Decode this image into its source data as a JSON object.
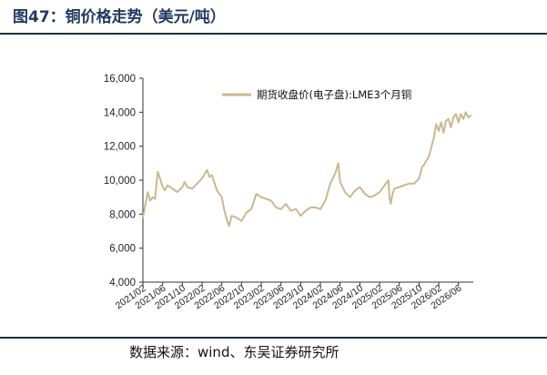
{
  "figure": {
    "title": "图47：铜价格走势（美元/吨）",
    "source": "数据来源：wind、东吴证券研究所"
  },
  "colors": {
    "line": "#c9b98f",
    "title": "#1f3a5f",
    "axis": "#333333",
    "rule": "#1f2f45"
  },
  "chart_data": {
    "type": "line",
    "title": "",
    "xlabel": "",
    "ylabel": "",
    "ylim": [
      4000,
      16000
    ],
    "yticks": [
      4000,
      6000,
      8000,
      10000,
      12000,
      14000,
      16000
    ],
    "ytick_labels": [
      "4,000",
      "6,000",
      "8,000",
      "10,000",
      "12,000",
      "14,000",
      "16,000"
    ],
    "xlim": [
      "2021-02",
      "2026-09"
    ],
    "xtick_labels": [
      "2021/02",
      "2021/06",
      "2021/10",
      "2022/02",
      "2022/06",
      "2022/10",
      "2023/02",
      "2023/06",
      "2023/10",
      "2024/02",
      "2024/06",
      "2024/10",
      "2025/02",
      "2025/06",
      "2025/10",
      "2026/02",
      "2026/06"
    ],
    "grid": false,
    "legend": "top-right",
    "series": [
      {
        "name": "期货收盘价(电子盘):LME3个月铜",
        "color": "#c9b98f",
        "x": [
          "2021-02",
          "2021-02-15",
          "2021-03",
          "2021-03-15",
          "2021-04",
          "2021-04-15",
          "2021-05",
          "2021-05-15",
          "2021-06",
          "2021-06-15",
          "2021-07",
          "2021-08",
          "2021-09",
          "2021-10",
          "2021-10-15",
          "2021-11",
          "2021-12",
          "2022-01",
          "2022-02",
          "2022-03",
          "2022-03-15",
          "2022-04",
          "2022-05",
          "2022-06",
          "2022-06-15",
          "2022-07",
          "2022-07-15",
          "2022-08",
          "2022-09",
          "2022-10",
          "2022-11",
          "2022-12",
          "2023-01",
          "2023-02",
          "2023-03",
          "2023-04",
          "2023-05",
          "2023-06",
          "2023-07",
          "2023-08",
          "2023-09",
          "2023-10",
          "2023-11",
          "2023-12",
          "2024-01",
          "2024-02",
          "2024-03",
          "2024-04",
          "2024-05",
          "2024-05-20",
          "2024-06",
          "2024-07",
          "2024-08",
          "2024-09",
          "2024-10",
          "2024-11",
          "2024-12",
          "2025-01",
          "2025-02",
          "2025-03",
          "2025-03-25",
          "2025-04",
          "2025-04-09",
          "2025-04-20",
          "2025-05",
          "2025-06",
          "2025-07",
          "2025-08",
          "2025-09",
          "2025-10",
          "2025-10-20",
          "2025-11",
          "2025-12",
          "2026-01",
          "2026-01-15",
          "2026-02",
          "2026-02-15",
          "2026-03",
          "2026-03-15",
          "2026-04",
          "2026-04-15",
          "2026-05",
          "2026-05-15",
          "2026-06",
          "2026-06-15",
          "2026-07",
          "2026-07-15",
          "2026-08",
          "2026-08-15"
        ],
        "y": [
          7800,
          8500,
          9300,
          8800,
          9000,
          8900,
          10500,
          10100,
          9600,
          9400,
          9700,
          9500,
          9300,
          9600,
          9900,
          9600,
          9500,
          9800,
          10100,
          10600,
          10200,
          10300,
          9400,
          9000,
          8300,
          7700,
          7300,
          7900,
          7800,
          7600,
          8100,
          8300,
          9200,
          9000,
          8900,
          8800,
          8400,
          8300,
          8600,
          8200,
          8300,
          7900,
          8200,
          8400,
          8400,
          8300,
          8800,
          9800,
          10400,
          11000,
          9900,
          9300,
          9000,
          9400,
          9600,
          9200,
          9000,
          9100,
          9300,
          9700,
          10000,
          9000,
          8600,
          9200,
          9500,
          9600,
          9700,
          9800,
          9800,
          10100,
          10800,
          10900,
          11400,
          12500,
          13300,
          12900,
          13400,
          12800,
          13500,
          13600,
          13100,
          13700,
          13900,
          13400,
          13900,
          13600,
          14000,
          13700,
          13800
        ]
      }
    ]
  }
}
